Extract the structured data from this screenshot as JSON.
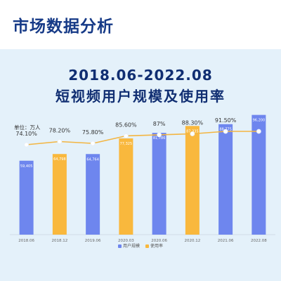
{
  "page": {
    "title": "市场数据分析"
  },
  "chart_data": {
    "type": "bar",
    "title": "2018.06-2022.08",
    "subtitle": "短视频用户规模及使用率",
    "unit_label": "单位：万人",
    "categories": [
      "2018.06",
      "2018.12",
      "2019.06",
      "2020.03",
      "2020.06",
      "2020.12",
      "2021.06",
      "2022.08"
    ],
    "series": [
      {
        "name": "用户规模",
        "kind": "bar",
        "values": [
          59405,
          64798,
          64764,
          77325,
          81786,
          87335,
          88775,
          96200
        ],
        "labels": [
          "59,405",
          "64,798",
          "64,764",
          "77,325",
          "81,786",
          "87,335",
          "88,775",
          "96,200"
        ]
      },
      {
        "name": "使用率",
        "kind": "line",
        "values": [
          74.1,
          78.2,
          75.8,
          85.6,
          87,
          88.3,
          91.5,
          91.5
        ],
        "labels": [
          "74.10%",
          "78.20%",
          "75.80%",
          "85.60%",
          "87%",
          "88.30%",
          "91.50%",
          ""
        ]
      }
    ],
    "bar_colors": [
      "#6e86ee",
      "#f9b83d",
      "#6e86ee",
      "#f9b83d",
      "#6e86ee",
      "#f9b83d",
      "#6e86ee",
      "#6e86ee"
    ],
    "line_color": "#f3b541",
    "bar_ylim": [
      0,
      105000
    ],
    "line_ylim": [
      0,
      100
    ],
    "legend": "bottom-center",
    "grid": false
  }
}
